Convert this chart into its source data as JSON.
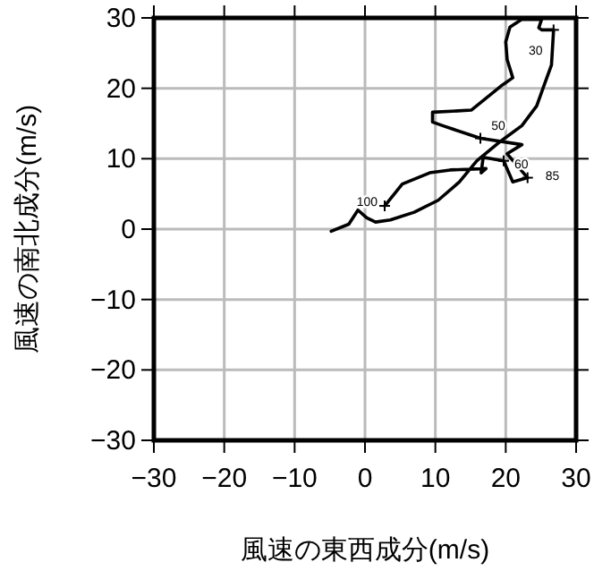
{
  "chart_data": {
    "type": "line",
    "xlabel": "風速の東西成分(m/s)",
    "ylabel": "風速の南北成分(m/s)",
    "xlim": [
      -30,
      30
    ],
    "ylim": [
      -30,
      30
    ],
    "xticks": [
      -30,
      -20,
      -10,
      0,
      10,
      20,
      30
    ],
    "yticks": [
      -30,
      -20,
      -10,
      0,
      10,
      20,
      30
    ],
    "grid": true,
    "marker": "none",
    "line_style": "solid",
    "series": [
      {
        "color": "#000000",
        "x": [
          2.8,
          5.3,
          9.2,
          12.1,
          17.2,
          16.5,
          16.8,
          19.7,
          21.0,
          23.1,
          20.2,
          22.3,
          16.4,
          11.3,
          9.6,
          9.6,
          15.1,
          19.3,
          21.0,
          20.2,
          20.0,
          20.6,
          22.3,
          25.1,
          24.7,
          25.1,
          26.8,
          26.5,
          25.4,
          24.4,
          22.3,
          18.9,
          15.9,
          13.4,
          10.4,
          7.0,
          3.6,
          1.5,
          0.25,
          -1.0,
          -2.3,
          -4.8
        ],
        "values": [
          3.3,
          6.4,
          8.0,
          8.4,
          8.6,
          8.0,
          10.2,
          9.7,
          6.7,
          7.3,
          10.7,
          12.0,
          12.9,
          14.6,
          15.2,
          16.6,
          16.9,
          20.3,
          21.5,
          24.1,
          26.6,
          28.7,
          29.8,
          29.8,
          28.6,
          28.3,
          28.3,
          23.3,
          20.3,
          17.5,
          14.7,
          12.2,
          9.7,
          6.7,
          4.1,
          2.4,
          1.3,
          1.0,
          1.6,
          2.7,
          0.7,
          -0.3
        ]
      }
    ],
    "annotations": [
      {
        "text": "30",
        "x": 26.8,
        "y": 28.3
      },
      {
        "text": "50",
        "x": 16.4,
        "y": 12.9
      },
      {
        "text": "60",
        "x": 19.7,
        "y": 9.7
      },
      {
        "text": "85",
        "x": 23.1,
        "y": 7.3
      },
      {
        "text": "100",
        "x": 2.8,
        "y": 3.3
      }
    ]
  }
}
